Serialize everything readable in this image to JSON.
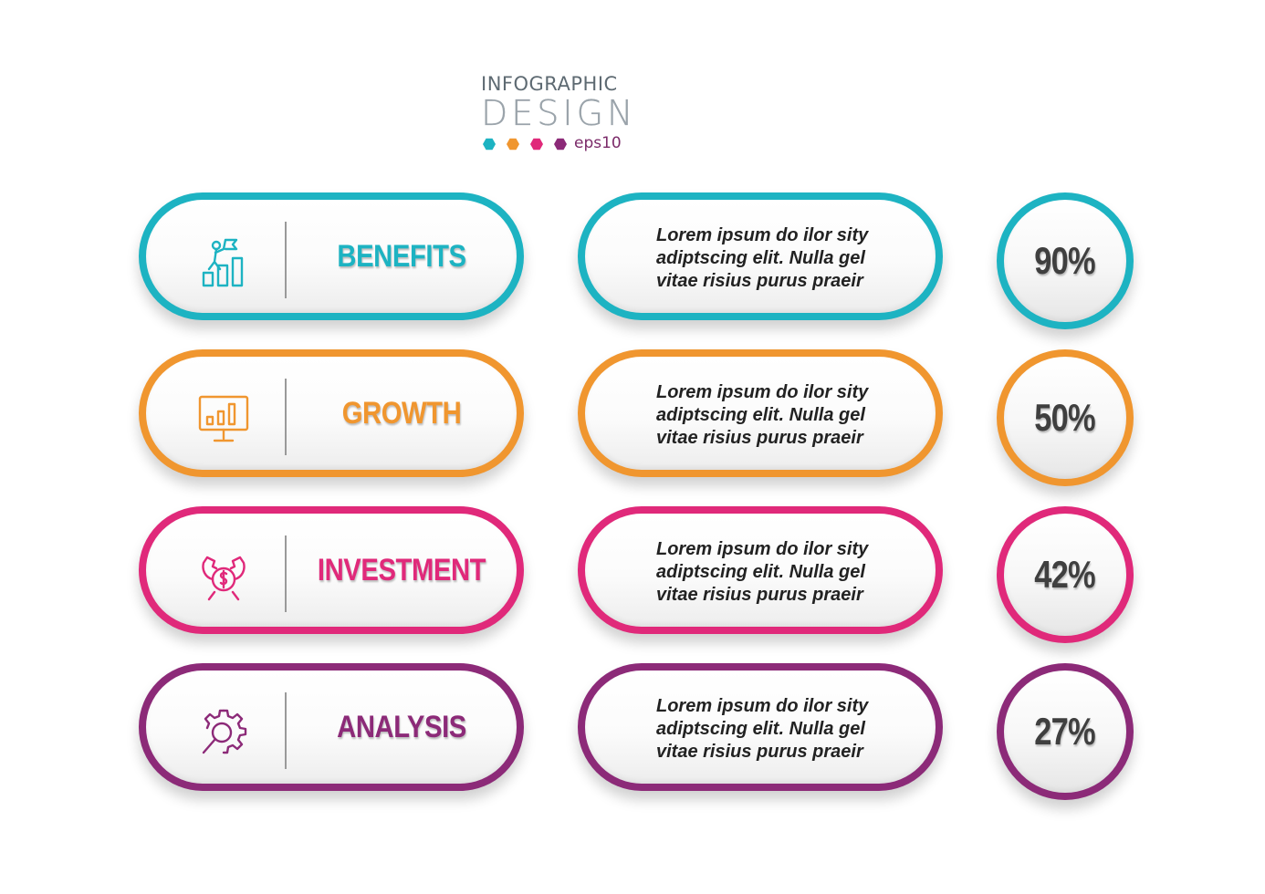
{
  "header": {
    "line1": "INFOGRAPHIC",
    "line2": "DESIGN",
    "tag": "eps10",
    "dot_colors": [
      "#1db3c2",
      "#f0962f",
      "#e0297a",
      "#8c2a78"
    ]
  },
  "rows": [
    {
      "label": "BENEFITS",
      "icon": "growth-person-flag-icon",
      "color": "#1db3c2",
      "description": [
        "Lorem ipsum do ilor sity",
        "adiptscing elit. Nulla gel",
        "vitae risius purus praeir"
      ],
      "percent": "90%"
    },
    {
      "label": "GROWTH",
      "icon": "monitor-chart-icon",
      "color": "#f0962f",
      "description": [
        "Lorem ipsum do ilor sity",
        "adiptscing elit. Nulla gel",
        "vitae risius purus praeir"
      ],
      "percent": "50%"
    },
    {
      "label": "INVESTMENT",
      "icon": "hands-dollar-coin-icon",
      "color": "#e0297a",
      "description": [
        "Lorem ipsum do ilor sity",
        "adiptscing elit. Nulla gel",
        "vitae risius purus praeir"
      ],
      "percent": "42%"
    },
    {
      "label": "ANALYSIS",
      "icon": "gear-magnifier-icon",
      "color": "#8c2a78",
      "description": [
        "Lorem ipsum do ilor sity",
        "adiptscing elit. Nulla gel",
        "vitae risius purus praeir"
      ],
      "percent": "27%"
    }
  ]
}
